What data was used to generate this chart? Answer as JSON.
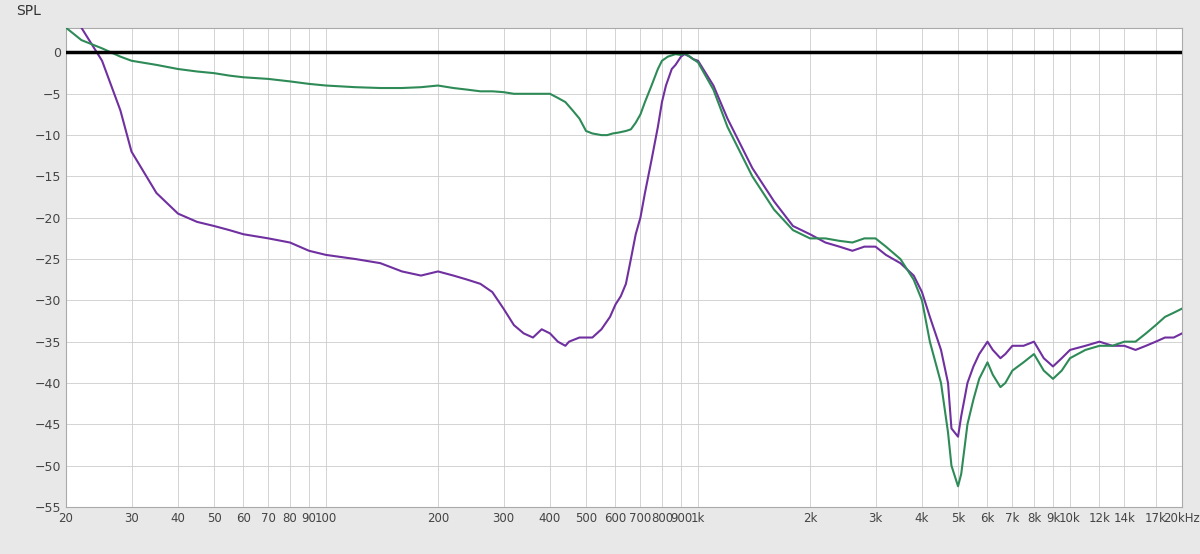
{
  "ylabel": "SPL",
  "outer_bg": "#e8e8e8",
  "plot_bg": "#ffffff",
  "grid_color": "#cccccc",
  "purple_color": "#7030A0",
  "green_color": "#2E8B57",
  "zero_line_color": "#000000",
  "ylim": [
    -55,
    3
  ],
  "yticks": [
    0,
    -5,
    -10,
    -15,
    -20,
    -25,
    -30,
    -35,
    -40,
    -45,
    -50,
    -55
  ],
  "xtick_labels": [
    "20",
    "30",
    "40",
    "50",
    "60",
    "70",
    "80",
    "90",
    "100",
    "200",
    "300",
    "400",
    "500",
    "600",
    "700",
    "800",
    "900",
    "1k",
    "2k",
    "3k",
    "4k",
    "5k",
    "6k",
    "7k",
    "8k",
    "9k",
    "10k",
    "12k",
    "14k",
    "17k",
    "20kHz"
  ],
  "xtick_freqs": [
    20,
    30,
    40,
    50,
    60,
    70,
    80,
    90,
    100,
    200,
    300,
    400,
    500,
    600,
    700,
    800,
    900,
    1000,
    2000,
    3000,
    4000,
    5000,
    6000,
    7000,
    8000,
    9000,
    10000,
    12000,
    14000,
    17000,
    20000
  ],
  "purple_data": [
    [
      20,
      5
    ],
    [
      22,
      3
    ],
    [
      25,
      -1
    ],
    [
      28,
      -7
    ],
    [
      30,
      -12
    ],
    [
      35,
      -17
    ],
    [
      40,
      -19.5
    ],
    [
      45,
      -20.5
    ],
    [
      50,
      -21
    ],
    [
      55,
      -21.5
    ],
    [
      60,
      -22
    ],
    [
      70,
      -22.5
    ],
    [
      80,
      -23
    ],
    [
      90,
      -24
    ],
    [
      100,
      -24.5
    ],
    [
      120,
      -25
    ],
    [
      140,
      -25.5
    ],
    [
      160,
      -26.5
    ],
    [
      180,
      -27
    ],
    [
      200,
      -26.5
    ],
    [
      220,
      -27
    ],
    [
      240,
      -27.5
    ],
    [
      260,
      -28
    ],
    [
      280,
      -29
    ],
    [
      300,
      -31
    ],
    [
      320,
      -33
    ],
    [
      340,
      -34
    ],
    [
      360,
      -34.5
    ],
    [
      380,
      -33.5
    ],
    [
      400,
      -34
    ],
    [
      420,
      -35
    ],
    [
      440,
      -35.5
    ],
    [
      450,
      -35
    ],
    [
      480,
      -34.5
    ],
    [
      500,
      -34.5
    ],
    [
      520,
      -34.5
    ],
    [
      550,
      -33.5
    ],
    [
      580,
      -32
    ],
    [
      600,
      -30.5
    ],
    [
      620,
      -29.5
    ],
    [
      640,
      -28
    ],
    [
      660,
      -25
    ],
    [
      680,
      -22
    ],
    [
      700,
      -20
    ],
    [
      720,
      -17
    ],
    [
      750,
      -13
    ],
    [
      780,
      -9
    ],
    [
      800,
      -6
    ],
    [
      820,
      -4
    ],
    [
      850,
      -2
    ],
    [
      870,
      -1.5
    ],
    [
      900,
      -0.5
    ],
    [
      920,
      -0.2
    ],
    [
      950,
      -0.5
    ],
    [
      970,
      -0.8
    ],
    [
      1000,
      -1
    ],
    [
      1100,
      -4
    ],
    [
      1200,
      -8
    ],
    [
      1400,
      -14
    ],
    [
      1600,
      -18
    ],
    [
      1800,
      -21
    ],
    [
      2000,
      -22
    ],
    [
      2200,
      -23
    ],
    [
      2400,
      -23.5
    ],
    [
      2600,
      -24
    ],
    [
      2800,
      -23.5
    ],
    [
      3000,
      -23.5
    ],
    [
      3200,
      -24.5
    ],
    [
      3500,
      -25.5
    ],
    [
      3800,
      -27
    ],
    [
      4000,
      -29
    ],
    [
      4200,
      -32
    ],
    [
      4500,
      -36
    ],
    [
      4700,
      -40
    ],
    [
      4800,
      -45.5
    ],
    [
      5000,
      -46.5
    ],
    [
      5100,
      -44
    ],
    [
      5200,
      -42
    ],
    [
      5300,
      -40
    ],
    [
      5500,
      -38
    ],
    [
      5700,
      -36.5
    ],
    [
      6000,
      -35
    ],
    [
      6200,
      -36
    ],
    [
      6500,
      -37
    ],
    [
      6700,
      -36.5
    ],
    [
      7000,
      -35.5
    ],
    [
      7500,
      -35.5
    ],
    [
      8000,
      -35
    ],
    [
      8500,
      -37
    ],
    [
      9000,
      -38
    ],
    [
      9500,
      -37
    ],
    [
      10000,
      -36
    ],
    [
      11000,
      -35.5
    ],
    [
      12000,
      -35
    ],
    [
      13000,
      -35.5
    ],
    [
      14000,
      -35.5
    ],
    [
      15000,
      -36
    ],
    [
      16000,
      -35.5
    ],
    [
      17000,
      -35
    ],
    [
      18000,
      -34.5
    ],
    [
      19000,
      -34.5
    ],
    [
      20000,
      -34
    ]
  ],
  "green_data": [
    [
      20,
      3
    ],
    [
      22,
      1.5
    ],
    [
      25,
      0.5
    ],
    [
      28,
      -0.5
    ],
    [
      30,
      -1
    ],
    [
      35,
      -1.5
    ],
    [
      40,
      -2
    ],
    [
      45,
      -2.3
    ],
    [
      50,
      -2.5
    ],
    [
      55,
      -2.8
    ],
    [
      60,
      -3
    ],
    [
      70,
      -3.2
    ],
    [
      80,
      -3.5
    ],
    [
      90,
      -3.8
    ],
    [
      100,
      -4
    ],
    [
      120,
      -4.2
    ],
    [
      140,
      -4.3
    ],
    [
      160,
      -4.3
    ],
    [
      180,
      -4.2
    ],
    [
      200,
      -4
    ],
    [
      220,
      -4.3
    ],
    [
      240,
      -4.5
    ],
    [
      260,
      -4.7
    ],
    [
      280,
      -4.7
    ],
    [
      300,
      -4.8
    ],
    [
      320,
      -5
    ],
    [
      350,
      -5
    ],
    [
      380,
      -5
    ],
    [
      400,
      -5
    ],
    [
      420,
      -5.5
    ],
    [
      440,
      -6
    ],
    [
      460,
      -7
    ],
    [
      480,
      -8
    ],
    [
      500,
      -9.5
    ],
    [
      520,
      -9.8
    ],
    [
      550,
      -10
    ],
    [
      570,
      -10
    ],
    [
      590,
      -9.8
    ],
    [
      610,
      -9.7
    ],
    [
      640,
      -9.5
    ],
    [
      660,
      -9.3
    ],
    [
      680,
      -8.5
    ],
    [
      700,
      -7.5
    ],
    [
      720,
      -6
    ],
    [
      750,
      -4
    ],
    [
      780,
      -2
    ],
    [
      800,
      -1
    ],
    [
      830,
      -0.5
    ],
    [
      870,
      -0.2
    ],
    [
      900,
      -0.3
    ],
    [
      920,
      -0.1
    ],
    [
      950,
      -0.5
    ],
    [
      970,
      -0.8
    ],
    [
      1000,
      -1.2
    ],
    [
      1100,
      -4.5
    ],
    [
      1200,
      -9
    ],
    [
      1400,
      -15
    ],
    [
      1600,
      -19
    ],
    [
      1800,
      -21.5
    ],
    [
      2000,
      -22.5
    ],
    [
      2200,
      -22.5
    ],
    [
      2400,
      -22.8
    ],
    [
      2600,
      -23
    ],
    [
      2800,
      -22.5
    ],
    [
      3000,
      -22.5
    ],
    [
      3200,
      -23.5
    ],
    [
      3500,
      -25
    ],
    [
      3800,
      -27.5
    ],
    [
      4000,
      -30
    ],
    [
      4200,
      -35
    ],
    [
      4500,
      -40
    ],
    [
      4700,
      -46
    ],
    [
      4800,
      -50
    ],
    [
      5000,
      -52.5
    ],
    [
      5100,
      -51
    ],
    [
      5200,
      -48
    ],
    [
      5300,
      -45
    ],
    [
      5500,
      -42
    ],
    [
      5700,
      -39.5
    ],
    [
      6000,
      -37.5
    ],
    [
      6200,
      -39
    ],
    [
      6500,
      -40.5
    ],
    [
      6700,
      -40
    ],
    [
      7000,
      -38.5
    ],
    [
      7500,
      -37.5
    ],
    [
      8000,
      -36.5
    ],
    [
      8500,
      -38.5
    ],
    [
      9000,
      -39.5
    ],
    [
      9500,
      -38.5
    ],
    [
      10000,
      -37
    ],
    [
      11000,
      -36
    ],
    [
      12000,
      -35.5
    ],
    [
      13000,
      -35.5
    ],
    [
      14000,
      -35
    ],
    [
      15000,
      -35
    ],
    [
      16000,
      -34
    ],
    [
      17000,
      -33
    ],
    [
      18000,
      -32
    ],
    [
      19000,
      -31.5
    ],
    [
      20000,
      -31
    ]
  ]
}
